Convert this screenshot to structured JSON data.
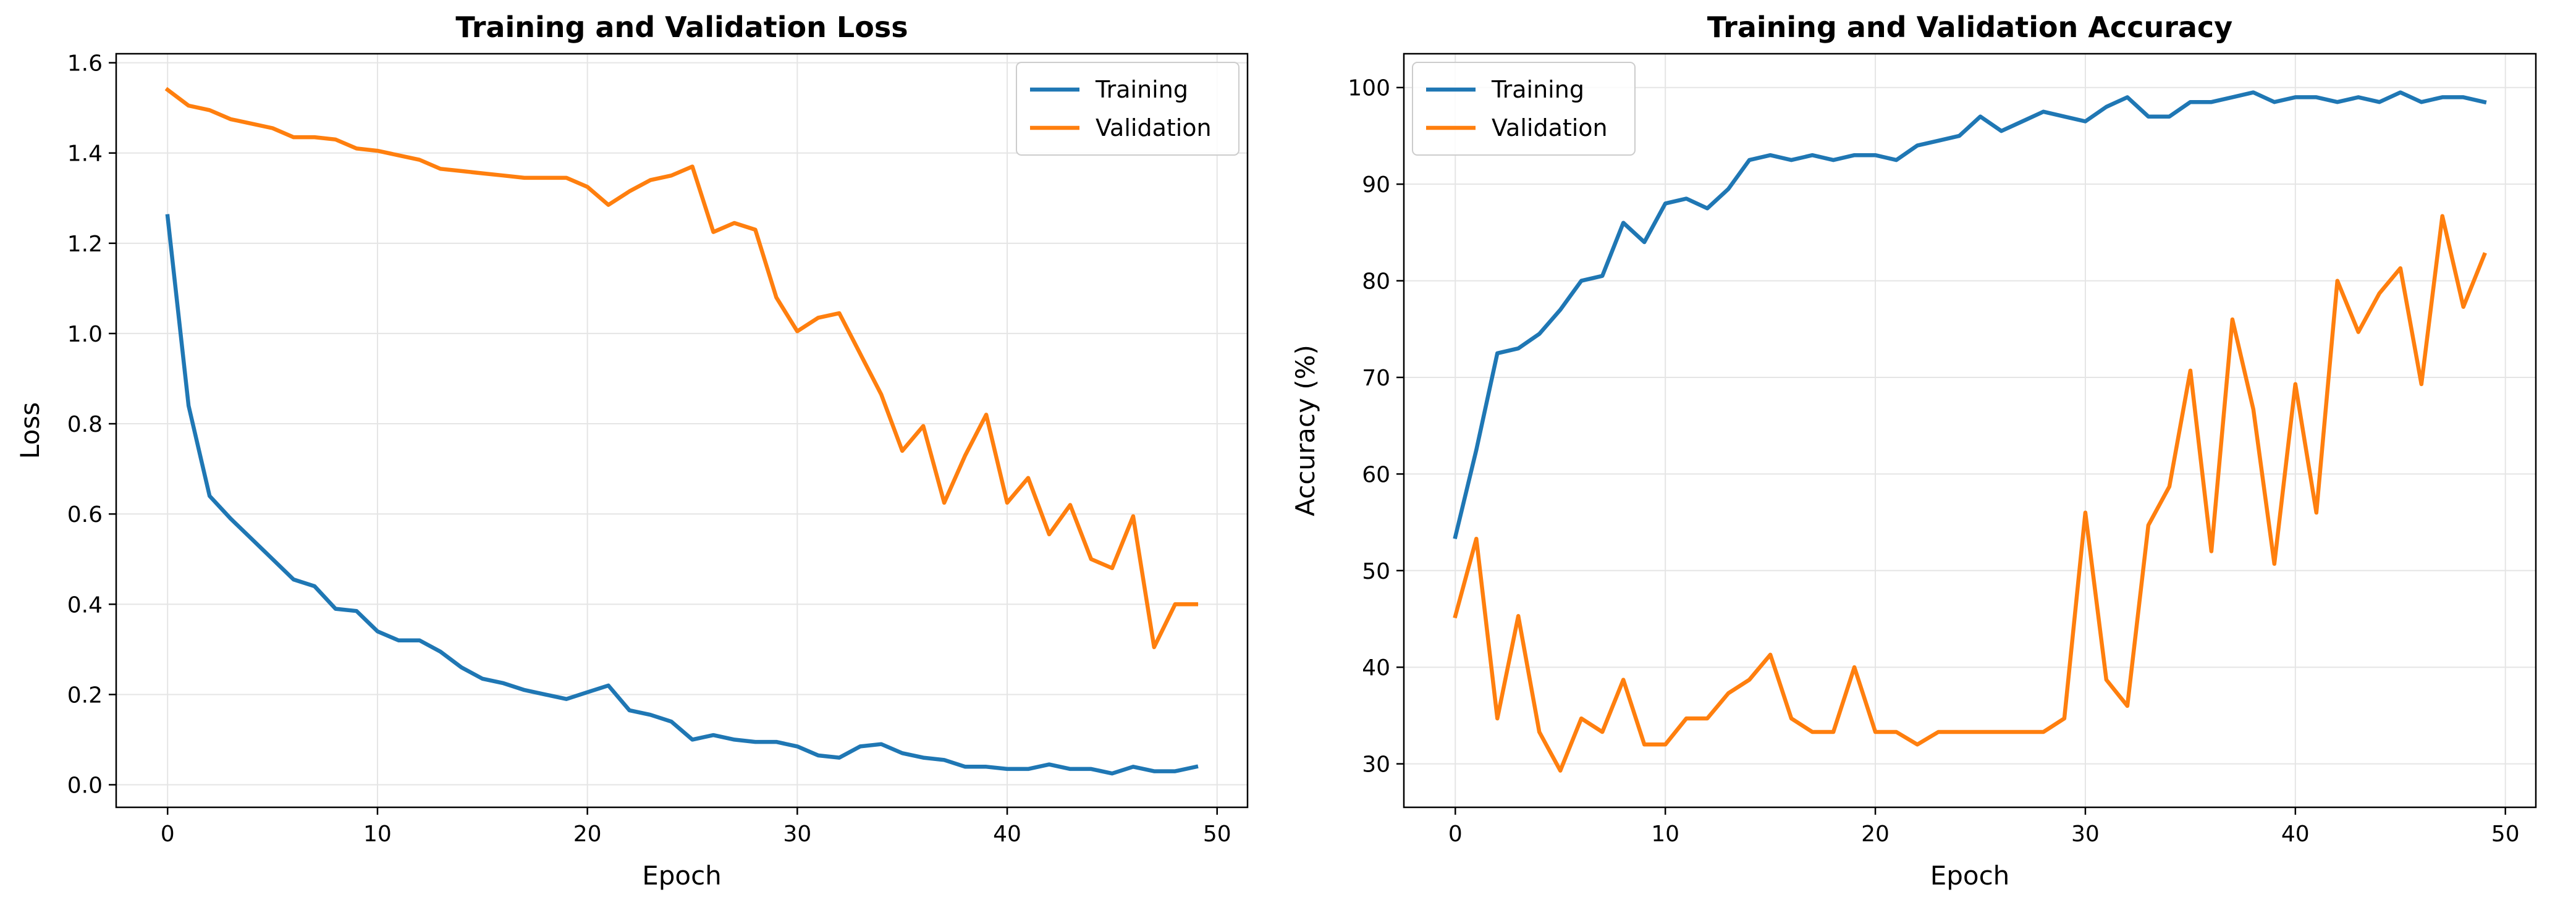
{
  "chart_data": [
    {
      "type": "line",
      "title": "Training and Validation Loss",
      "xlabel": "Epoch",
      "ylabel": "Loss",
      "xlim": [
        -2.45,
        51.45
      ],
      "ylim": [
        -0.05,
        1.62
      ],
      "xticks": [
        0,
        10,
        20,
        30,
        40,
        50
      ],
      "yticks": [
        0.0,
        0.2,
        0.4,
        0.6,
        0.8,
        1.0,
        1.2,
        1.4,
        1.6
      ],
      "ytick_labels": [
        "0.0",
        "0.2",
        "0.4",
        "0.6",
        "0.8",
        "1.0",
        "1.2",
        "1.4",
        "1.6"
      ],
      "grid": true,
      "legend": "top-right",
      "x": [
        0,
        1,
        2,
        3,
        4,
        5,
        6,
        7,
        8,
        9,
        10,
        11,
        12,
        13,
        14,
        15,
        16,
        17,
        18,
        19,
        20,
        21,
        22,
        23,
        24,
        25,
        26,
        27,
        28,
        29,
        30,
        31,
        32,
        33,
        34,
        35,
        36,
        37,
        38,
        39,
        40,
        41,
        42,
        43,
        44,
        45,
        46,
        47,
        48,
        49
      ],
      "series": [
        {
          "name": "Training",
          "color": "#1f77b4",
          "values": [
            1.26,
            0.84,
            0.64,
            0.59,
            0.545,
            0.5,
            0.455,
            0.44,
            0.39,
            0.385,
            0.34,
            0.32,
            0.32,
            0.295,
            0.26,
            0.235,
            0.225,
            0.21,
            0.2,
            0.19,
            0.205,
            0.22,
            0.165,
            0.155,
            0.14,
            0.1,
            0.11,
            0.1,
            0.095,
            0.095,
            0.085,
            0.065,
            0.06,
            0.085,
            0.09,
            0.07,
            0.06,
            0.055,
            0.04,
            0.04,
            0.035,
            0.035,
            0.045,
            0.035,
            0.035,
            0.025,
            0.04,
            0.03,
            0.03,
            0.04
          ]
        },
        {
          "name": "Validation",
          "color": "#ff7f0e",
          "values": [
            1.54,
            1.505,
            1.495,
            1.475,
            1.465,
            1.455,
            1.435,
            1.435,
            1.43,
            1.41,
            1.405,
            1.395,
            1.385,
            1.365,
            1.36,
            1.355,
            1.35,
            1.345,
            1.345,
            1.345,
            1.325,
            1.285,
            1.315,
            1.34,
            1.35,
            1.37,
            1.225,
            1.245,
            1.23,
            1.08,
            1.005,
            1.035,
            1.045,
            0.955,
            0.865,
            0.74,
            0.795,
            0.625,
            0.73,
            0.82,
            0.625,
            0.68,
            0.555,
            0.62,
            0.5,
            0.48,
            0.595,
            0.305,
            0.4,
            0.4
          ]
        }
      ]
    },
    {
      "type": "line",
      "title": "Training and Validation Accuracy",
      "xlabel": "Epoch",
      "ylabel": "Accuracy (%)",
      "xlim": [
        -2.45,
        51.45
      ],
      "ylim": [
        25.5,
        103.5
      ],
      "xticks": [
        0,
        10,
        20,
        30,
        40,
        50
      ],
      "yticks": [
        30,
        40,
        50,
        60,
        70,
        80,
        90,
        100
      ],
      "ytick_labels": [
        "30",
        "40",
        "50",
        "60",
        "70",
        "80",
        "90",
        "100"
      ],
      "grid": true,
      "legend": "top-left",
      "x": [
        0,
        1,
        2,
        3,
        4,
        5,
        6,
        7,
        8,
        9,
        10,
        11,
        12,
        13,
        14,
        15,
        16,
        17,
        18,
        19,
        20,
        21,
        22,
        23,
        24,
        25,
        26,
        27,
        28,
        29,
        30,
        31,
        32,
        33,
        34,
        35,
        36,
        37,
        38,
        39,
        40,
        41,
        42,
        43,
        44,
        45,
        46,
        47,
        48,
        49
      ],
      "series": [
        {
          "name": "Training",
          "color": "#1f77b4",
          "values": [
            53.5,
            62.5,
            72.5,
            73,
            74.5,
            77,
            80,
            80.5,
            86,
            84,
            88,
            88.5,
            87.5,
            89.5,
            92.5,
            93,
            92.5,
            93,
            92.5,
            93,
            93,
            92.5,
            94,
            94.5,
            95,
            97,
            95.5,
            96.5,
            97.5,
            97,
            96.5,
            98,
            99,
            97,
            97,
            98.5,
            98.5,
            99,
            99.5,
            98.5,
            99,
            99,
            98.5,
            99,
            98.5,
            99.5,
            98.5,
            99,
            99,
            98.5
          ]
        },
        {
          "name": "Validation",
          "color": "#ff7f0e",
          "values": [
            45.3,
            53.3,
            34.7,
            45.3,
            33.3,
            29.3,
            34.7,
            33.3,
            38.7,
            32,
            32,
            34.7,
            34.7,
            37.3,
            38.7,
            41.3,
            34.7,
            33.3,
            33.3,
            40,
            33.3,
            33.3,
            32,
            33.3,
            33.3,
            33.3,
            33.3,
            33.3,
            33.3,
            34.7,
            56,
            38.7,
            36,
            54.7,
            58.7,
            70.7,
            52,
            76,
            66.7,
            50.7,
            69.3,
            56,
            80,
            74.7,
            78.7,
            81.3,
            69.3,
            86.7,
            77.3,
            82.7
          ]
        }
      ]
    }
  ]
}
